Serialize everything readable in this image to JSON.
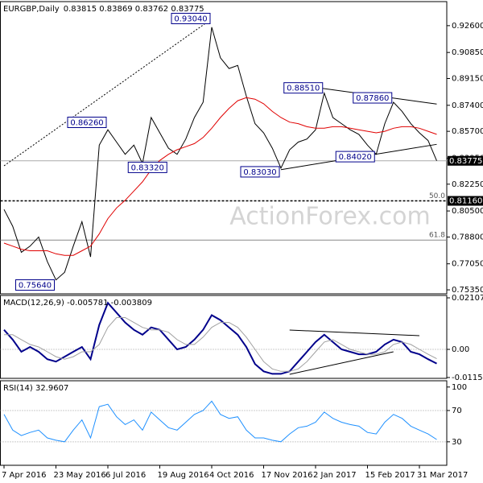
{
  "chart_data": [
    {
      "type": "line",
      "title": "EURGBP,Daily",
      "subtitle": "0.83815 0.83869 0.83762 0.83775",
      "watermark": "ActionForex.com",
      "series": [
        {
          "color": "#000000",
          "values": [
            0.806,
            0.795,
            0.778,
            0.782,
            0.788,
            0.772,
            0.76,
            0.765,
            0.782,
            0.798,
            0.775,
            0.848,
            0.858,
            0.85,
            0.842,
            0.848,
            0.836,
            0.866,
            0.856,
            0.846,
            0.842,
            0.852,
            0.866,
            0.876,
            0.925,
            0.905,
            0.898,
            0.9,
            0.88,
            0.862,
            0.856,
            0.846,
            0.833,
            0.845,
            0.85,
            0.852,
            0.858,
            0.882,
            0.866,
            0.862,
            0.858,
            0.855,
            0.848,
            0.842,
            0.862,
            0.876,
            0.87,
            0.862,
            0.856,
            0.851,
            0.8378
          ]
        },
        {
          "color": "#e00000",
          "values": [
            0.784,
            0.782,
            0.78,
            0.779,
            0.779,
            0.779,
            0.777,
            0.776,
            0.776,
            0.779,
            0.782,
            0.79,
            0.8,
            0.807,
            0.812,
            0.818,
            0.824,
            0.832,
            0.838,
            0.842,
            0.845,
            0.847,
            0.849,
            0.853,
            0.859,
            0.866,
            0.872,
            0.877,
            0.879,
            0.878,
            0.875,
            0.87,
            0.866,
            0.863,
            0.862,
            0.86,
            0.859,
            0.859,
            0.86,
            0.86,
            0.859,
            0.858,
            0.857,
            0.856,
            0.857,
            0.859,
            0.86,
            0.86,
            0.859,
            0.857,
            0.855
          ]
        }
      ],
      "ylim": [
        0.7509,
        0.9417
      ],
      "yticks": [
        {
          "value": 0.926,
          "label": "0.92600"
        },
        {
          "value": 0.9085,
          "label": "0.90850"
        },
        {
          "value": 0.8915,
          "label": "0.89150"
        },
        {
          "value": 0.874,
          "label": "0.87400"
        },
        {
          "value": 0.857,
          "label": "0.85700"
        },
        {
          "value": 0.8395,
          "label": "0.83950"
        },
        {
          "value": 0.8225,
          "label": "0.82250"
        },
        {
          "value": 0.805,
          "label": "0.80500"
        },
        {
          "value": 0.788,
          "label": "0.78800"
        },
        {
          "value": 0.7705,
          "label": "0.77050"
        },
        {
          "value": 0.7535,
          "label": "0.75350"
        }
      ],
      "annotations": [
        {
          "label": "0.93040",
          "value": 0.9304,
          "x": 24
        },
        {
          "label": "0.86260",
          "value": 0.8626,
          "x": 12
        },
        {
          "label": "0.83320",
          "value": 0.8332,
          "x": 19
        },
        {
          "label": "0.83030",
          "value": 0.8303,
          "x": 32
        },
        {
          "label": "0.88510",
          "value": 0.8851,
          "x": 37
        },
        {
          "label": "0.87860",
          "value": 0.8786,
          "x": 45
        },
        {
          "label": "0.84020",
          "value": 0.8402,
          "x": 43
        },
        {
          "label": "0.75640",
          "value": 0.7564,
          "x": 6
        }
      ],
      "levels": [
        {
          "value": 0.8116,
          "label": "50.0",
          "price_label": "0.81160"
        },
        {
          "value": 0.786,
          "label": "61.8"
        }
      ],
      "last": 0.83775,
      "trendlines": [
        {
          "x": [
            0,
            24
          ],
          "y": [
            0.8345,
            0.9304
          ],
          "dotted": true
        },
        {
          "x": [
            33,
            50
          ],
          "y": [
            0.888,
            0.8748
          ]
        },
        {
          "x": [
            32,
            50
          ],
          "y": [
            0.832,
            0.8485
          ]
        }
      ]
    },
    {
      "type": "line",
      "title": "MACD(12,26,9) -0.005781 -0.003809",
      "series": [
        {
          "color": "#00008b",
          "values": [
            0.008,
            0.004,
            -0.001,
            0.001,
            -0.001,
            -0.004,
            -0.005,
            -0.003,
            -0.001,
            0.001,
            -0.004,
            0.01,
            0.019,
            0.015,
            0.011,
            0.008,
            0.006,
            0.009,
            0.008,
            0.004,
            0.0,
            0.001,
            0.004,
            0.008,
            0.014,
            0.012,
            0.009,
            0.006,
            0.001,
            -0.006,
            -0.009,
            -0.01,
            -0.01,
            -0.009,
            -0.005,
            -0.001,
            0.003,
            0.006,
            0.003,
            0.0,
            -0.001,
            -0.002,
            -0.002,
            -0.001,
            0.002,
            0.004,
            0.003,
            -0.001,
            -0.002,
            -0.004,
            -0.005781
          ]
        },
        {
          "color": "#a0a0a0",
          "values": [
            0.006,
            0.006,
            0.004,
            0.002,
            0.001,
            -0.001,
            -0.003,
            -0.004,
            -0.003,
            -0.001,
            -0.001,
            0.002,
            0.009,
            0.013,
            0.013,
            0.011,
            0.009,
            0.008,
            0.008,
            0.007,
            0.004,
            0.002,
            0.002,
            0.005,
            0.009,
            0.011,
            0.011,
            0.009,
            0.005,
            0.0,
            -0.005,
            -0.008,
            -0.009,
            -0.009,
            -0.008,
            -0.005,
            -0.001,
            0.003,
            0.004,
            0.002,
            0.0,
            -0.001,
            -0.002,
            -0.002,
            -0.001,
            0.002,
            0.003,
            0.002,
            0.0,
            -0.002,
            -0.003809
          ]
        }
      ],
      "ylim": [
        -0.01185,
        0.02206
      ],
      "yticks": [
        0.021074,
        {
          "value": 0,
          "label": "0.00"
        },
        -0.011507
      ],
      "levels": [
        {
          "value": 0
        }
      ],
      "trendlines": [
        {
          "x": [
            33,
            48
          ],
          "y": [
            0.0079,
            0.0056
          ]
        },
        {
          "x": [
            33,
            45
          ],
          "y": [
            -0.0102,
            -0.001
          ]
        }
      ]
    },
    {
      "type": "line",
      "title": "RSI(14) 32.9607",
      "categories": [
        "7 Apr 2016",
        null,
        null,
        null,
        null,
        null,
        "23 May 2016",
        null,
        null,
        null,
        null,
        null,
        "6 Jul 2016",
        null,
        null,
        null,
        null,
        null,
        "19 Aug 2016",
        null,
        null,
        null,
        null,
        null,
        "4 Oct 2016",
        null,
        null,
        null,
        null,
        null,
        "17 Nov 2016",
        null,
        null,
        null,
        null,
        null,
        "2 Jan 2017",
        null,
        null,
        null,
        null,
        null,
        "15 Feb 2017",
        null,
        null,
        null,
        null,
        null,
        "31 Mar 2017",
        null,
        null
      ],
      "series": [
        {
          "color": "#1e90ff",
          "values": [
            65,
            45,
            38,
            42,
            45,
            35,
            32,
            30,
            45,
            58,
            35,
            75,
            78,
            62,
            52,
            58,
            45,
            68,
            58,
            48,
            45,
            55,
            65,
            70,
            82,
            65,
            60,
            62,
            45,
            35,
            35,
            32,
            30,
            40,
            48,
            50,
            55,
            68,
            60,
            55,
            52,
            50,
            42,
            40,
            55,
            65,
            60,
            50,
            45,
            40,
            32.9607
          ]
        }
      ],
      "ylim": [
        0,
        108
      ],
      "yticks": [
        100,
        70,
        30
      ],
      "levels": [
        {
          "value": 70
        },
        {
          "value": 30
        }
      ]
    }
  ]
}
